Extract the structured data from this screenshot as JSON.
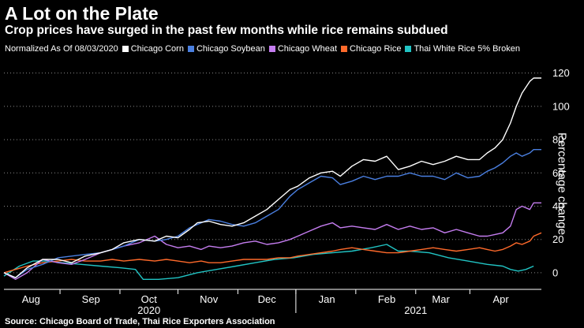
{
  "header": {
    "title": "A Lot on the Plate",
    "subtitle": "Crop prices have surged in the past few months while rice remains subdued"
  },
  "legend": {
    "note": "Normalized As Of 08/03/2020"
  },
  "source": "Source: Chicago Board of Trade, Thai Rice Exporters Association",
  "chart_data": {
    "type": "line",
    "title": "A Lot on the Plate",
    "subtitle": "Crop prices have surged in the past few months while rice remains subdued",
    "ylabel": "Percentage change",
    "xlabel": "",
    "ylim": [
      -10,
      126
    ],
    "yticks": [
      0,
      20,
      40,
      60,
      80,
      100,
      120
    ],
    "grid": true,
    "legend_position": "top",
    "x_unit": "days since 2020-08-03",
    "xlim": [
      0,
      272
    ],
    "month_ticks": [
      {
        "label": "Aug",
        "x": 14
      },
      {
        "label": "Sep",
        "x": 45
      },
      {
        "label": "Oct",
        "x": 75
      },
      {
        "label": "Nov",
        "x": 106
      },
      {
        "label": "Dec",
        "x": 136
      },
      {
        "label": "Jan",
        "x": 167
      },
      {
        "label": "Feb",
        "x": 198
      },
      {
        "label": "Mar",
        "x": 226
      },
      {
        "label": "Apr",
        "x": 257
      }
    ],
    "month_boundaries": [
      29,
      60,
      90,
      121,
      151,
      182,
      213,
      241
    ],
    "year_labels": [
      {
        "label": "2020",
        "x": 75
      },
      {
        "label": "2021",
        "x": 213
      }
    ],
    "series": [
      {
        "name": "Chicago Corn",
        "color": "#ffffff",
        "x": [
          0,
          6,
          12,
          20,
          28,
          35,
          42,
          50,
          56,
          62,
          70,
          78,
          84,
          90,
          96,
          100,
          106,
          112,
          118,
          124,
          130,
          136,
          142,
          148,
          152,
          158,
          164,
          170,
          174,
          180,
          186,
          192,
          198,
          204,
          210,
          216,
          222,
          228,
          234,
          240,
          246,
          250,
          254,
          258,
          262,
          265,
          268,
          272,
          274,
          278
        ],
        "y": [
          0,
          -3,
          3,
          8,
          8,
          6,
          10,
          12,
          14,
          18,
          20,
          19,
          22,
          21,
          26,
          30,
          31,
          29,
          28,
          30,
          34,
          38,
          44,
          50,
          52,
          57,
          60,
          61,
          58,
          64,
          68,
          67,
          70,
          62,
          64,
          67,
          65,
          67,
          70,
          68,
          68,
          72,
          75,
          80,
          90,
          100,
          108,
          115,
          117,
          117
        ]
      },
      {
        "name": "Chicago Soybean",
        "color": "#4a7fe0",
        "x": [
          0,
          6,
          12,
          20,
          28,
          35,
          42,
          50,
          56,
          62,
          70,
          78,
          84,
          90,
          96,
          102,
          106,
          112,
          118,
          124,
          130,
          136,
          142,
          148,
          152,
          158,
          164,
          170,
          174,
          180,
          186,
          192,
          198,
          204,
          210,
          216,
          222,
          228,
          234,
          240,
          246,
          250,
          254,
          258,
          262,
          265,
          268,
          272,
          274,
          278
        ],
        "y": [
          0,
          -3,
          2,
          5,
          9,
          10,
          11,
          12,
          14,
          16,
          20,
          19,
          20,
          22,
          27,
          30,
          32,
          31,
          29,
          28,
          30,
          34,
          38,
          46,
          50,
          54,
          58,
          57,
          53,
          55,
          58,
          56,
          58,
          58,
          60,
          58,
          58,
          56,
          60,
          57,
          58,
          61,
          63,
          66,
          70,
          72,
          70,
          72,
          74,
          74
        ]
      },
      {
        "name": "Chicago Wheat",
        "color": "#c57df0",
        "x": [
          0,
          6,
          12,
          20,
          28,
          35,
          42,
          50,
          56,
          62,
          70,
          78,
          84,
          90,
          96,
          102,
          106,
          112,
          118,
          124,
          130,
          136,
          142,
          148,
          152,
          158,
          164,
          170,
          174,
          180,
          186,
          192,
          198,
          204,
          210,
          216,
          222,
          228,
          234,
          240,
          246,
          250,
          254,
          258,
          262,
          265,
          268,
          272,
          274,
          278
        ],
        "y": [
          0,
          -4,
          0,
          8,
          6,
          5,
          8,
          12,
          14,
          16,
          18,
          22,
          17,
          15,
          16,
          14,
          16,
          15,
          16,
          18,
          19,
          17,
          18,
          20,
          22,
          25,
          28,
          30,
          27,
          28,
          27,
          26,
          29,
          26,
          28,
          26,
          27,
          24,
          26,
          24,
          22,
          22,
          23,
          24,
          28,
          38,
          40,
          38,
          42,
          42
        ]
      },
      {
        "name": "Chicago Rice",
        "color": "#ff6a2b",
        "x": [
          0,
          6,
          12,
          20,
          28,
          35,
          42,
          50,
          56,
          62,
          70,
          78,
          84,
          90,
          96,
          102,
          106,
          112,
          118,
          124,
          130,
          136,
          142,
          148,
          152,
          158,
          164,
          170,
          174,
          180,
          186,
          192,
          198,
          204,
          210,
          216,
          222,
          228,
          234,
          240,
          246,
          250,
          254,
          258,
          262,
          265,
          268,
          272,
          274,
          278
        ],
        "y": [
          0,
          2,
          4,
          6,
          7,
          8,
          7,
          7,
          8,
          7,
          8,
          7,
          8,
          7,
          6,
          7,
          6,
          6,
          7,
          8,
          8,
          8,
          9,
          9,
          10,
          11,
          12,
          13,
          14,
          15,
          14,
          13,
          12,
          12,
          13,
          14,
          15,
          14,
          13,
          14,
          15,
          14,
          13,
          14,
          16,
          18,
          17,
          19,
          22,
          24
        ]
      },
      {
        "name": "Thai White Rice 5% Broken",
        "color": "#21c4c4",
        "x": [
          0,
          8,
          15,
          22,
          30,
          40,
          50,
          60,
          68,
          72,
          80,
          90,
          100,
          110,
          120,
          130,
          140,
          150,
          160,
          170,
          180,
          190,
          198,
          204,
          210,
          220,
          230,
          240,
          250,
          258,
          262,
          266,
          270,
          274
        ],
        "y": [
          -2,
          4,
          7,
          7,
          6,
          5,
          4,
          3,
          2,
          -4,
          -4,
          -3,
          0,
          2,
          4,
          6,
          8,
          9,
          11,
          12,
          13,
          15,
          17,
          13,
          13,
          12,
          9,
          7,
          5,
          4,
          2,
          1,
          2,
          4
        ]
      }
    ]
  }
}
